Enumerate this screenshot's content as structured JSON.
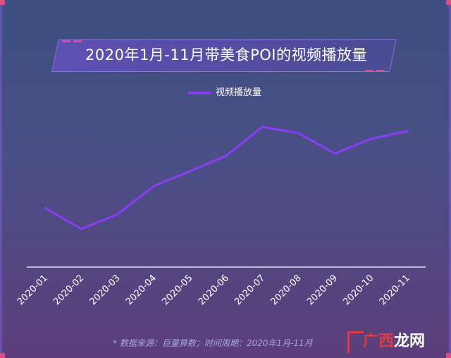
{
  "title": "2020年1月-11月带美食POI的视频播放量",
  "colors": {
    "line": "#8b3cf7",
    "axis": "#ffffff",
    "accent": "#e04b8a"
  },
  "footnote": "* 数据来源：巨量算数；时间周期：2020年1月-11月",
  "watermark": {
    "part1": "广",
    "part2": "西",
    "part3": "龙网"
  },
  "chart_data": {
    "type": "line",
    "title": "2020年1月-11月带美食POI的视频播放量",
    "legend_position": "top-center",
    "grid": false,
    "categories": [
      "2020-01",
      "2020-02",
      "2020-03",
      "2020-04",
      "2020-05",
      "2020-06",
      "2020-07",
      "2020-08",
      "2020-09",
      "2020-10",
      "2020-11"
    ],
    "series": [
      {
        "name": "视频播放量",
        "values": [
          84,
          54,
          75,
          115,
          136,
          158,
          199,
          190,
          161,
          182,
          193
        ]
      }
    ],
    "ylim": [
      0,
      250
    ]
  }
}
